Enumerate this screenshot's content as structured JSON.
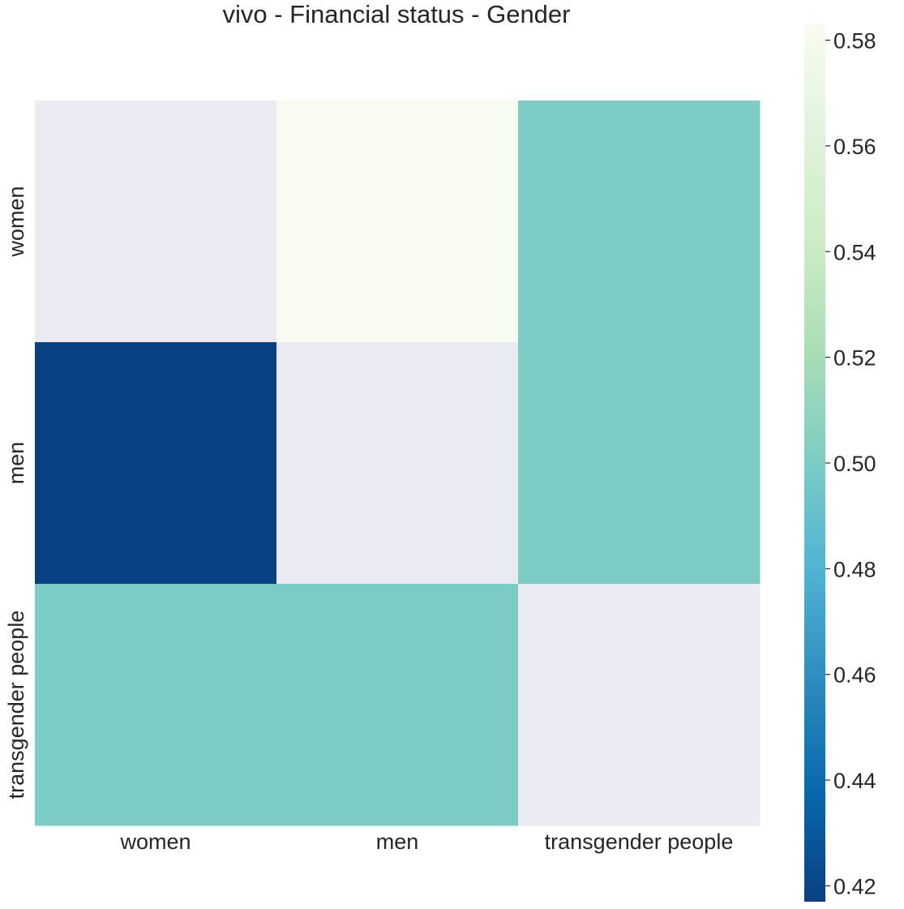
{
  "chart_data": {
    "type": "heatmap",
    "title": "vivo - Financial status - Gender",
    "x_categories": [
      "women",
      "men",
      "transgender people"
    ],
    "y_categories": [
      "women",
      "men",
      "transgender people"
    ],
    "values": [
      [
        null,
        0.583,
        0.5
      ],
      [
        0.417,
        null,
        0.5
      ],
      [
        0.5,
        0.5,
        null
      ]
    ],
    "missing_color": "#eaeaf2",
    "colormap": "GnBu_r",
    "colorbar": {
      "vmin": 0.417,
      "vmax": 0.583,
      "ticks": [
        0.42,
        0.44,
        0.46,
        0.48,
        0.5,
        0.52,
        0.54,
        0.56,
        0.58
      ],
      "tick_labels": [
        "0.42",
        "0.44",
        "0.46",
        "0.48",
        "0.50",
        "0.52",
        "0.54",
        "0.56",
        "0.58"
      ],
      "stops": [
        "#084081",
        "#0868ac",
        "#2b8cbe",
        "#4eb3d3",
        "#7bccc4",
        "#a8ddb5",
        "#ccebc5",
        "#e0f3db",
        "#f7fcf0"
      ]
    },
    "grid": false
  }
}
